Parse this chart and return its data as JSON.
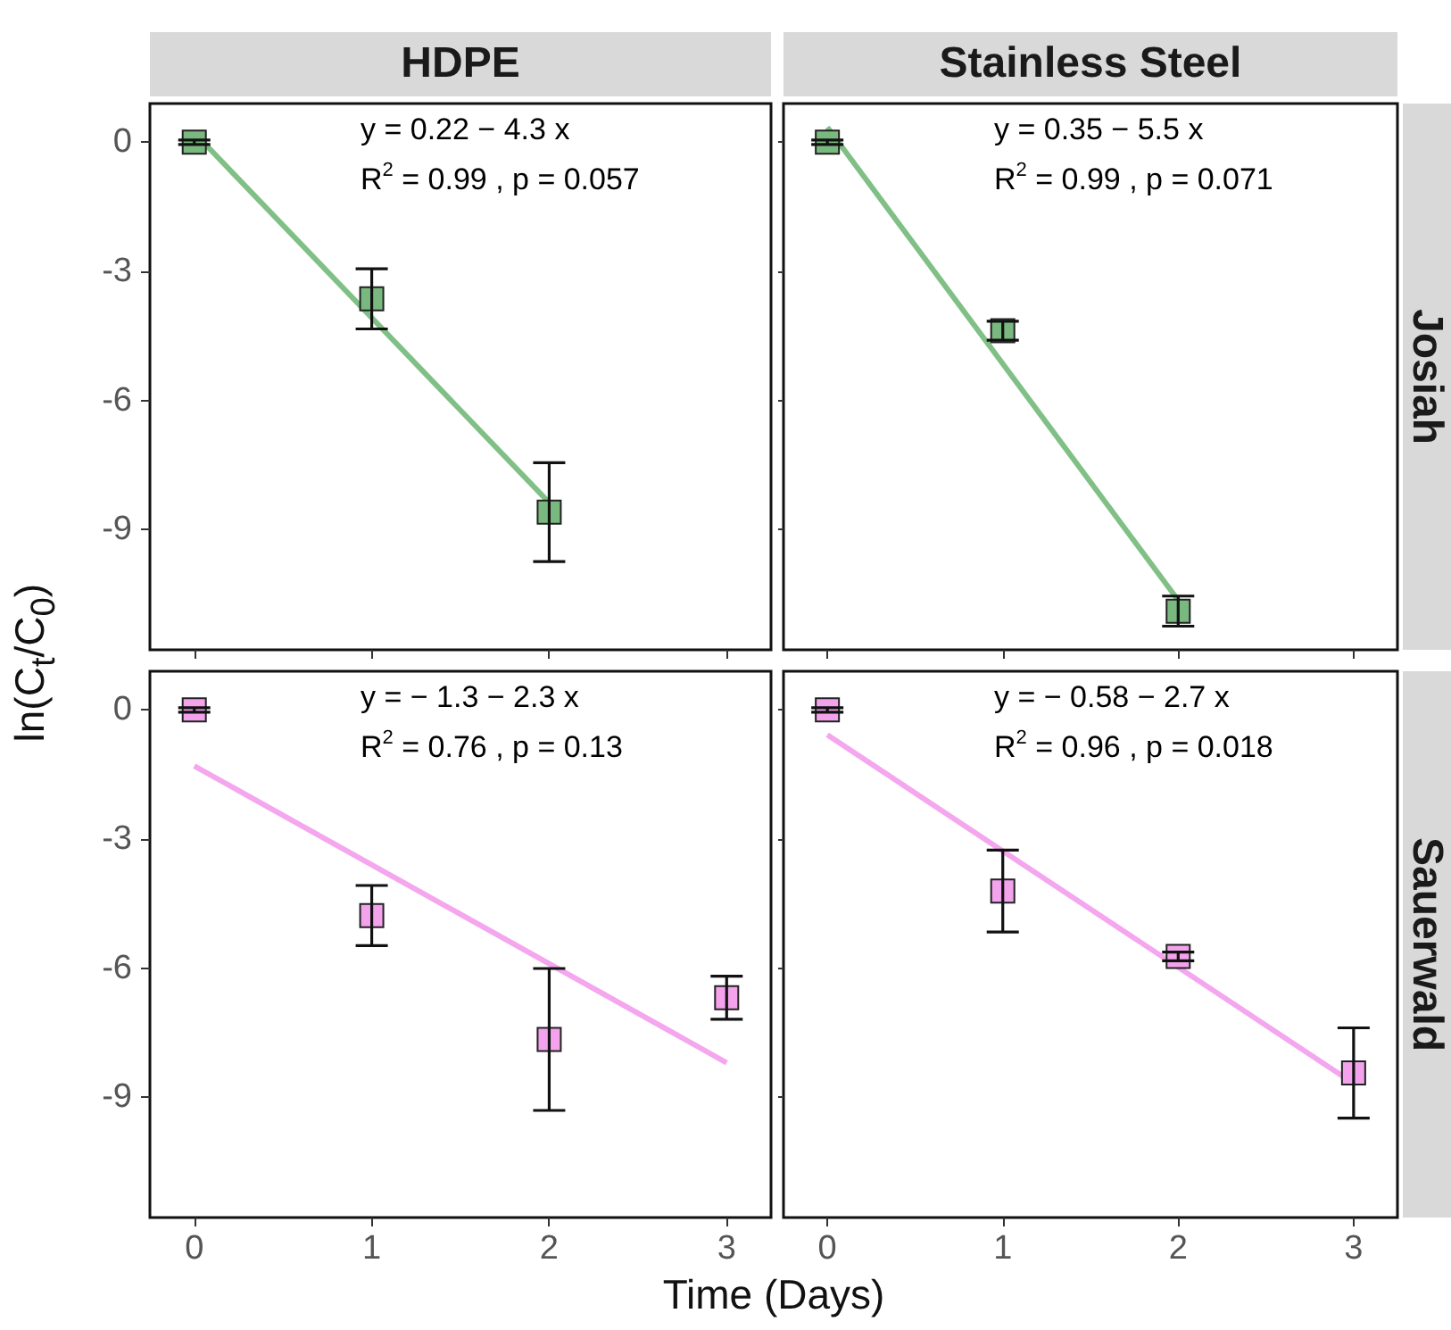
{
  "chart_data": [
    {
      "type": "scatter",
      "title": "HDPE",
      "ylabel": "ln(C$_{t}$/C$_{0}$)",
      "tick_labels": "y",
      "marker": "square",
      "xlim": [
        -0.25,
        3.25
      ],
      "ylim": [
        -11.8,
        0.9
      ],
      "xticks": [
        0,
        1,
        2,
        3
      ],
      "yticks": [
        0,
        -3,
        -6,
        -9
      ],
      "annotations": [
        "y = 0.22 − 4.3 x",
        "R$^{2}$ = 0.99 , p = 0.057"
      ],
      "series": [
        {
          "color": "#79b97f",
          "x": [
            0,
            1,
            2
          ],
          "values": [
            0,
            -3.64,
            -8.6
          ],
          "errors": [
            0.05,
            0.7,
            1.15
          ]
        },
        {
          "type": "line",
          "marker": "none",
          "color": "#80c086",
          "x": [
            0,
            2
          ],
          "values": [
            0.22,
            -8.38
          ]
        }
      ]
    },
    {
      "type": "scatter",
      "title": "Stainless Steel",
      "y2label": "Josiah",
      "tick_labels": false,
      "marker": "square",
      "xlim": [
        -0.25,
        3.25
      ],
      "ylim": [
        -11.8,
        0.9
      ],
      "xticks": [
        0,
        1,
        2,
        3
      ],
      "yticks": [
        0,
        -3,
        -6,
        -9
      ],
      "annotations": [
        "y = 0.35 − 5.5 x",
        "R$^{2}$ = 0.99 , p = 0.071"
      ],
      "series": [
        {
          "color": "#79b97f",
          "x": [
            0,
            1,
            2
          ],
          "values": [
            0,
            -4.38,
            -10.9
          ],
          "errors": [
            0.05,
            0.22,
            0.35
          ]
        },
        {
          "type": "line",
          "marker": "none",
          "color": "#80c086",
          "x": [
            0,
            2
          ],
          "values": [
            0.35,
            -10.65
          ]
        }
      ]
    },
    {
      "type": "scatter",
      "xlabel": "Time (Days)",
      "marker": "square",
      "xlim": [
        -0.25,
        3.25
      ],
      "ylim": [
        -11.8,
        0.9
      ],
      "xticks": [
        0,
        1,
        2,
        3
      ],
      "yticks": [
        0,
        -3,
        -6,
        -9
      ],
      "annotations": [
        "y = − 1.3 − 2.3 x",
        "R$^{2}$ = 0.76 , p = 0.13"
      ],
      "series": [
        {
          "color": "#f3a2ec",
          "x": [
            0,
            1,
            2,
            3
          ],
          "values": [
            0,
            -4.78,
            -7.66,
            -6.69
          ],
          "errors": [
            0.05,
            0.7,
            1.65,
            0.5
          ]
        },
        {
          "type": "line",
          "marker": "none",
          "color": "#f4a6ee",
          "x": [
            0,
            3
          ],
          "values": [
            -1.3,
            -8.2
          ]
        }
      ]
    },
    {
      "type": "scatter",
      "y2label": "Sauerwald",
      "tick_labels": "x",
      "marker": "square",
      "xlim": [
        -0.25,
        3.25
      ],
      "ylim": [
        -11.8,
        0.9
      ],
      "xticks": [
        0,
        1,
        2,
        3
      ],
      "yticks": [
        0,
        -3,
        -6,
        -9
      ],
      "annotations": [
        "y = − 0.58 − 2.7 x",
        "R$^{2}$ = 0.96 , p = 0.018"
      ],
      "series": [
        {
          "color": "#f3a2ec",
          "x": [
            0,
            1,
            2,
            3
          ],
          "values": [
            0,
            -4.21,
            -5.73,
            -8.44
          ],
          "errors": [
            0.05,
            0.95,
            0.1,
            1.05
          ]
        },
        {
          "type": "line",
          "marker": "none",
          "color": "#f4a6ee",
          "x": [
            0,
            3
          ],
          "values": [
            -0.58,
            -8.68
          ]
        }
      ]
    }
  ]
}
